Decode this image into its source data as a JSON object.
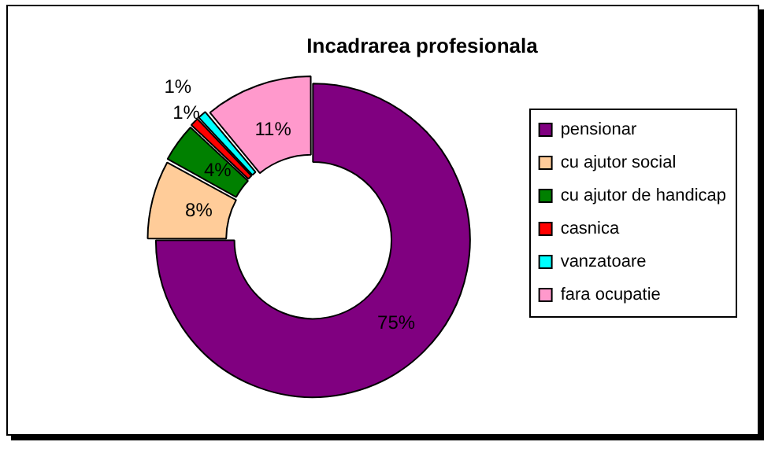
{
  "chart_data": {
    "type": "donut",
    "title": "Incadrarea profesionala",
    "categories": [
      "pensionar",
      "cu ajutor social",
      "cu ajutor de handicap",
      "casnica",
      "vanzatoare",
      "fara ocupatie"
    ],
    "values": [
      75,
      8,
      4,
      1,
      1,
      11
    ],
    "value_labels": [
      "75%",
      "8%",
      "4%",
      "1%",
      "1%",
      "11%"
    ],
    "colors": [
      "#800080",
      "#ffcc99",
      "#008000",
      "#ff0000",
      "#00ffff",
      "#ff99cc"
    ],
    "legend": "right"
  }
}
